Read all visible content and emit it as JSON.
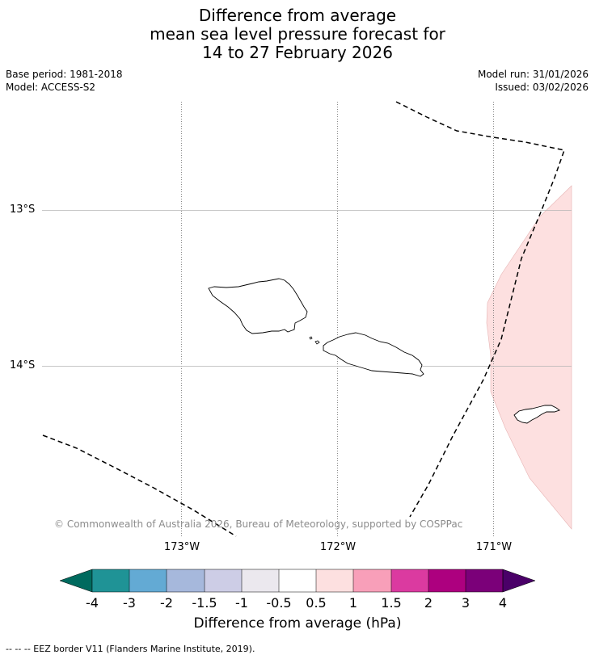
{
  "title": {
    "line1": "Difference from average",
    "line2": "mean sea level pressure forecast for",
    "line3": "14 to 27 February 2026"
  },
  "meta": {
    "base_period": "Base period: 1981-2018",
    "model": "Model: ACCESS-S2",
    "model_run": "Model run: 31/01/2026",
    "issued": "Issued: 03/02/2026"
  },
  "map": {
    "lat_labels": [
      "13°S",
      "14°S"
    ],
    "lon_labels": [
      "173°W",
      "172°W",
      "171°W"
    ],
    "copyright": "© Commonwealth of Australia 2026, Bureau of Meteorology, supported by COSPPac"
  },
  "colorbar": {
    "ticks": [
      "-4",
      "-3",
      "-2",
      "-1.5",
      "-1",
      "-0.5",
      "0.5",
      "1",
      "1.5",
      "2",
      "3",
      "4"
    ],
    "colors": [
      "#006a5e",
      "#1f9396",
      "#63aad4",
      "#a6b8dc",
      "#cdcde6",
      "#ebe8ee",
      "#ffffff",
      "#fde0e0",
      "#f89fb9",
      "#db3aa0",
      "#ad007f",
      "#7b0079",
      "#4a0068"
    ],
    "label": "Difference from average (hPa)"
  },
  "footer": "--  --  -- EEZ border V11 (Flanders Marine Institute, 2019)."
}
